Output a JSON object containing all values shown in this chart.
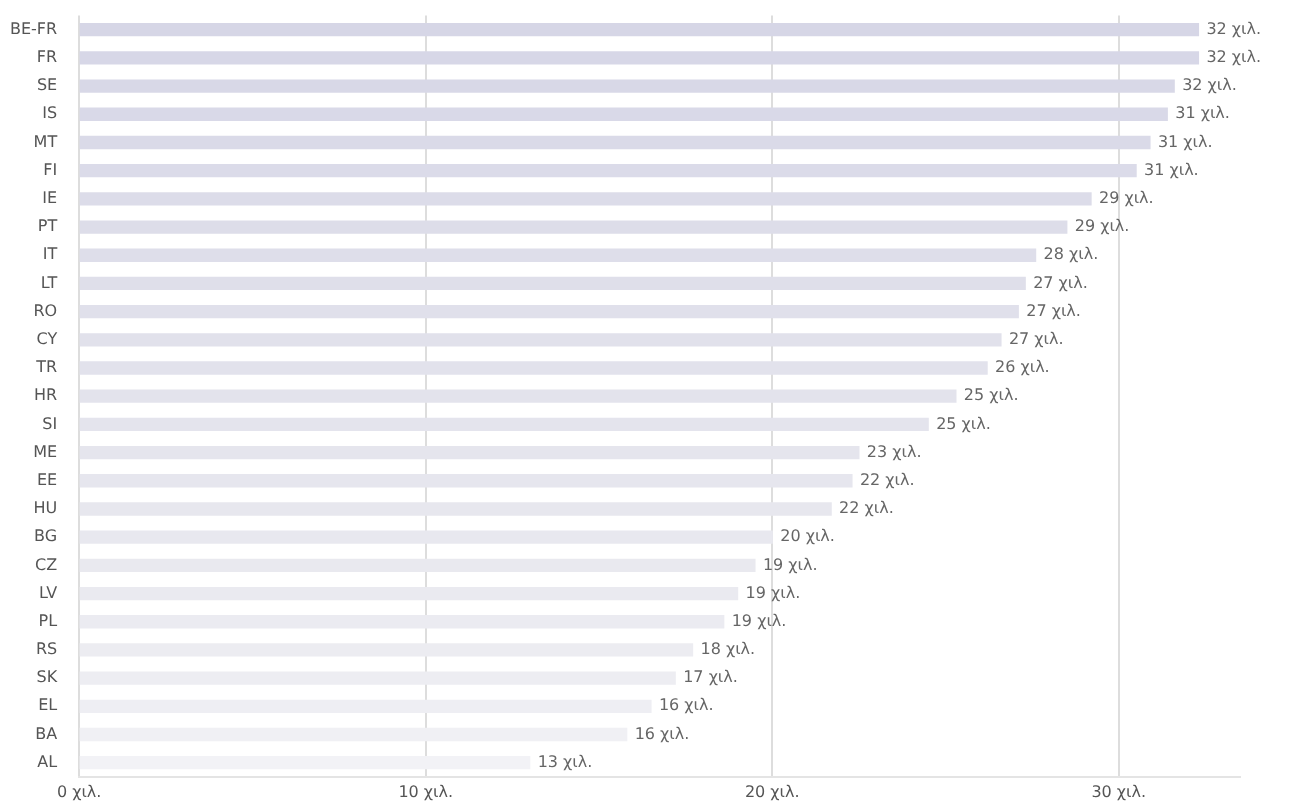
{
  "chart_data": {
    "type": "bar",
    "orientation": "horizontal",
    "categories": [
      "BE-FR",
      "FR",
      "SE",
      "IS",
      "MT",
      "FI",
      "IE",
      "PT",
      "IT",
      "LT",
      "RO",
      "CY",
      "TR",
      "HR",
      "SI",
      "ME",
      "EE",
      "HU",
      "BG",
      "CZ",
      "LV",
      "PL",
      "RS",
      "SK",
      "EL",
      "BA",
      "AL"
    ],
    "values": [
      32.3,
      32.3,
      31.6,
      31.4,
      30.9,
      30.5,
      29.2,
      28.5,
      27.6,
      27.3,
      27.1,
      26.6,
      26.2,
      25.3,
      24.5,
      22.5,
      22.3,
      21.7,
      20.0,
      19.5,
      19.0,
      18.6,
      17.7,
      17.2,
      16.5,
      15.8,
      13.0
    ],
    "value_labels": [
      "32 χιλ.",
      "32 χιλ.",
      "32 χιλ.",
      "31 χιλ.",
      "31 χιλ.",
      "31 χιλ.",
      "29 χιλ.",
      "29 χιλ.",
      "28 χιλ.",
      "27 χιλ.",
      "27 χιλ.",
      "27 χιλ.",
      "26 χιλ.",
      "25 χιλ.",
      "25 χιλ.",
      "23 χιλ.",
      "22 χιλ.",
      "22 χιλ.",
      "20 χιλ.",
      "19 χιλ.",
      "19 χιλ.",
      "19 χιλ.",
      "18 χιλ.",
      "17 χιλ.",
      "16 χιλ.",
      "16 χιλ.",
      "13 χιλ."
    ],
    "colors": [
      "#d6d6e6",
      "#d7d7e7",
      "#d8d8e7",
      "#d9d9e8",
      "#dadae8",
      "#dbdbe9",
      "#dcdce9",
      "#dddde9",
      "#dedeea",
      "#dfdfea",
      "#e0e0eb",
      "#e1e1eb",
      "#e2e2ec",
      "#e3e3ec",
      "#e4e4ed",
      "#e5e5ed",
      "#e6e6ee",
      "#e7e7ee",
      "#e8e8ef",
      "#e9e9ef",
      "#eaeaf0",
      "#ebebf1",
      "#ececf1",
      "#ededf2",
      "#eeeef3",
      "#f0f0f4",
      "#f2f2f6"
    ],
    "xlim": [
      0,
      33.5
    ],
    "xticks": [
      {
        "value": 0,
        "label": "0 χιλ."
      },
      {
        "value": 10,
        "label": "10 χιλ."
      },
      {
        "value": 20,
        "label": "20 χιλ."
      },
      {
        "value": 30,
        "label": "30 χιλ."
      }
    ],
    "grid": "x",
    "legend": false
  }
}
